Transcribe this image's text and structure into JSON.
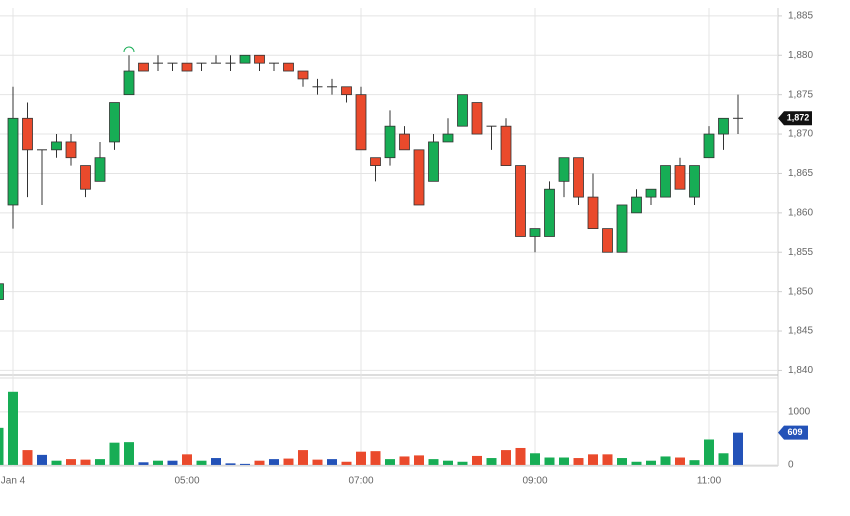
{
  "chart_data": {
    "type": "candlestick",
    "categories": [
      null,
      "Jan 4",
      null,
      null,
      null,
      null,
      null,
      null,
      null,
      null,
      null,
      null,
      null,
      "05:00",
      null,
      null,
      null,
      null,
      null,
      null,
      null,
      null,
      null,
      null,
      null,
      "07:00",
      null,
      null,
      null,
      null,
      null,
      null,
      null,
      null,
      null,
      null,
      null,
      "09:00",
      null,
      null,
      null,
      null,
      null,
      null,
      null,
      null,
      null,
      null,
      null,
      "11:00",
      null,
      null
    ],
    "open": [
      1849,
      1861,
      1872,
      1868,
      1868,
      1869,
      1866,
      1864,
      1869,
      1875,
      1879,
      1879,
      1879,
      1879,
      1879,
      1879,
      1879,
      1879,
      1880,
      1879,
      1879,
      1878,
      1876,
      1876,
      1876,
      1875,
      1867,
      1867,
      1870,
      1868,
      1864,
      1869,
      1871,
      1874,
      1871,
      1871,
      1866,
      1857,
      1857,
      1864,
      1867,
      1862,
      1858,
      1855,
      1860,
      1862,
      1862,
      1866,
      1862,
      1867,
      1870,
      1872
    ],
    "high": [
      1851,
      1876,
      1874,
      1868,
      1870,
      1870,
      1866,
      1869,
      1874,
      1880,
      1879,
      1880,
      1879,
      1879,
      1879,
      1880,
      1880,
      1880,
      1880,
      1879,
      1879,
      1878,
      1877,
      1877,
      1876,
      1876,
      1867,
      1873,
      1871,
      1868,
      1870,
      1872,
      1875,
      1874,
      1871,
      1872,
      1866,
      1858,
      1864,
      1867,
      1867,
      1865,
      1858,
      1861,
      1863,
      1863,
      1866,
      1867,
      1866,
      1871,
      1872,
      1875
    ],
    "low": [
      1849,
      1858,
      1862,
      1861,
      1867,
      1866,
      1862,
      1864,
      1868,
      1875,
      1878,
      1878,
      1878,
      1878,
      1878,
      1879,
      1878,
      1879,
      1878,
      1878,
      1878,
      1876,
      1875,
      1875,
      1874,
      1868,
      1864,
      1866,
      1868,
      1861,
      1864,
      1869,
      1871,
      1870,
      1868,
      1866,
      1857,
      1855,
      1857,
      1862,
      1861,
      1858,
      1855,
      1855,
      1860,
      1861,
      1862,
      1863,
      1861,
      1867,
      1868,
      1870
    ],
    "close": [
      1851,
      1872,
      1868,
      1868,
      1869,
      1867,
      1863,
      1867,
      1874,
      1878,
      1878,
      1879,
      1879,
      1878,
      1879,
      1879,
      1879,
      1880,
      1879,
      1879,
      1878,
      1877,
      1876,
      1876,
      1875,
      1868,
      1866,
      1871,
      1868,
      1861,
      1869,
      1870,
      1875,
      1870,
      1871,
      1866,
      1857,
      1858,
      1863,
      1867,
      1862,
      1858,
      1855,
      1861,
      1862,
      1863,
      1866,
      1863,
      1866,
      1870,
      1872,
      1872
    ],
    "up_color": "#17ad55",
    "down_color": "#ea4a2c",
    "flat_color": "#2352b8",
    "last_close_label": "1,872",
    "ylim": [
      1839.8,
      1886
    ],
    "yticks": [
      {
        "value": 1840,
        "label": "1,840"
      },
      {
        "value": 1845,
        "label": "1,845"
      },
      {
        "value": 1850,
        "label": "1,850"
      },
      {
        "value": 1855,
        "label": "1,855"
      },
      {
        "value": 1860,
        "label": "1,860"
      },
      {
        "value": 1865,
        "label": "1,865"
      },
      {
        "value": 1870,
        "label": "1,870"
      },
      {
        "value": 1875,
        "label": "1,875"
      },
      {
        "value": 1880,
        "label": "1,880"
      },
      {
        "value": 1885,
        "label": "1,885"
      }
    ],
    "volume": {
      "values": [
        700,
        1380,
        280,
        190,
        80,
        110,
        100,
        110,
        420,
        430,
        50,
        80,
        80,
        200,
        80,
        130,
        30,
        20,
        80,
        110,
        120,
        280,
        100,
        110,
        60,
        250,
        260,
        110,
        160,
        180,
        110,
        80,
        60,
        170,
        130,
        280,
        320,
        220,
        140,
        140,
        130,
        200,
        200,
        130,
        60,
        80,
        160,
        140,
        90,
        480,
        220,
        609
      ],
      "colors": [
        "#17ad55",
        "#17ad55",
        "#ea4a2c",
        "#2352b8",
        "#17ad55",
        "#ea4a2c",
        "#ea4a2c",
        "#17ad55",
        "#17ad55",
        "#17ad55",
        "#2352b8",
        "#17ad55",
        "#2352b8",
        "#ea4a2c",
        "#17ad55",
        "#2352b8",
        "#2352b8",
        "#2352b8",
        "#ea4a2c",
        "#2352b8",
        "#ea4a2c",
        "#ea4a2c",
        "#ea4a2c",
        "#2352b8",
        "#ea4a2c",
        "#ea4a2c",
        "#ea4a2c",
        "#17ad55",
        "#ea4a2c",
        "#ea4a2c",
        "#17ad55",
        "#17ad55",
        "#17ad55",
        "#ea4a2c",
        "#17ad55",
        "#ea4a2c",
        "#ea4a2c",
        "#17ad55",
        "#17ad55",
        "#17ad55",
        "#ea4a2c",
        "#ea4a2c",
        "#ea4a2c",
        "#17ad55",
        "#17ad55",
        "#17ad55",
        "#17ad55",
        "#ea4a2c",
        "#17ad55",
        "#17ad55",
        "#17ad55",
        "#2352b8"
      ],
      "y2lim": [
        -20,
        1640
      ],
      "y2ticks": [
        0,
        1000
      ]
    }
  }
}
